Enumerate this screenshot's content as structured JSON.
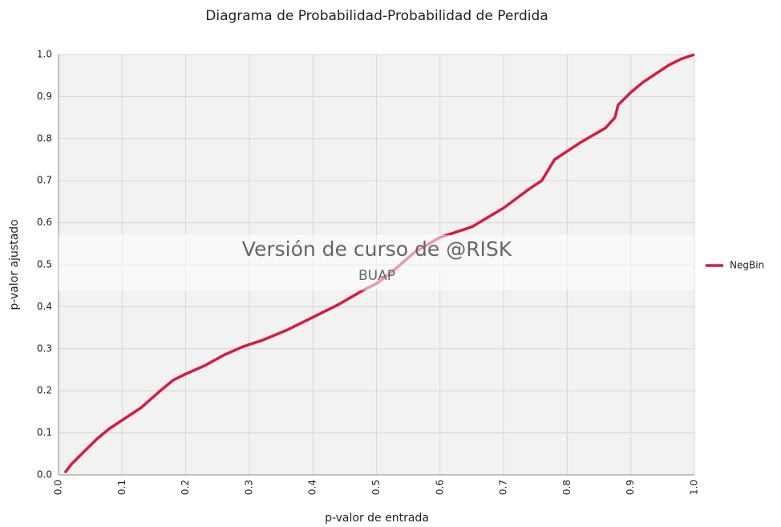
{
  "chart_data": {
    "type": "line",
    "title": "Diagrama de Probabilidad-Probabilidad de Perdida",
    "x_label": "p-valor de entrada",
    "y_label": "p-valor ajustado",
    "annotations": [
      "Versión de curso de @RISK",
      "BUAP"
    ],
    "x": [
      0.01,
      0.02,
      0.04,
      0.06,
      0.08,
      0.1,
      0.13,
      0.16,
      0.18,
      0.2,
      0.23,
      0.26,
      0.29,
      0.32,
      0.36,
      0.4,
      0.44,
      0.48,
      0.5,
      0.53,
      0.56,
      0.6,
      0.65,
      0.7,
      0.74,
      0.76,
      0.78,
      0.8,
      0.82,
      0.86,
      0.875,
      0.88,
      0.9,
      0.92,
      0.94,
      0.96,
      0.98,
      1.0
    ],
    "series": [
      {
        "name": "NegBin",
        "color": "#d81b40",
        "values": [
          0.005,
          0.025,
          0.055,
          0.085,
          0.11,
          0.13,
          0.16,
          0.2,
          0.225,
          0.24,
          0.26,
          0.285,
          0.305,
          0.32,
          0.345,
          0.375,
          0.405,
          0.44,
          0.455,
          0.49,
          0.53,
          0.565,
          0.59,
          0.635,
          0.68,
          0.7,
          0.75,
          0.77,
          0.79,
          0.825,
          0.85,
          0.88,
          0.91,
          0.935,
          0.955,
          0.975,
          0.99,
          1.0
        ]
      }
    ],
    "xlim": [
      0,
      1
    ],
    "ylim": [
      0,
      1
    ],
    "xticks": [
      {
        "value": 0,
        "label": "0.0"
      },
      0.1,
      0.2,
      0.3,
      0.4,
      0.5,
      0.6,
      0.7,
      0.8,
      0.9,
      {
        "value": 1,
        "label": "1.0"
      }
    ],
    "yticks": [
      {
        "value": 0,
        "label": "0.0"
      },
      0.1,
      0.2,
      0.3,
      0.4,
      0.5,
      0.6,
      0.7,
      0.8,
      0.9,
      {
        "value": 1,
        "label": "1.0"
      }
    ],
    "grid": true
  }
}
